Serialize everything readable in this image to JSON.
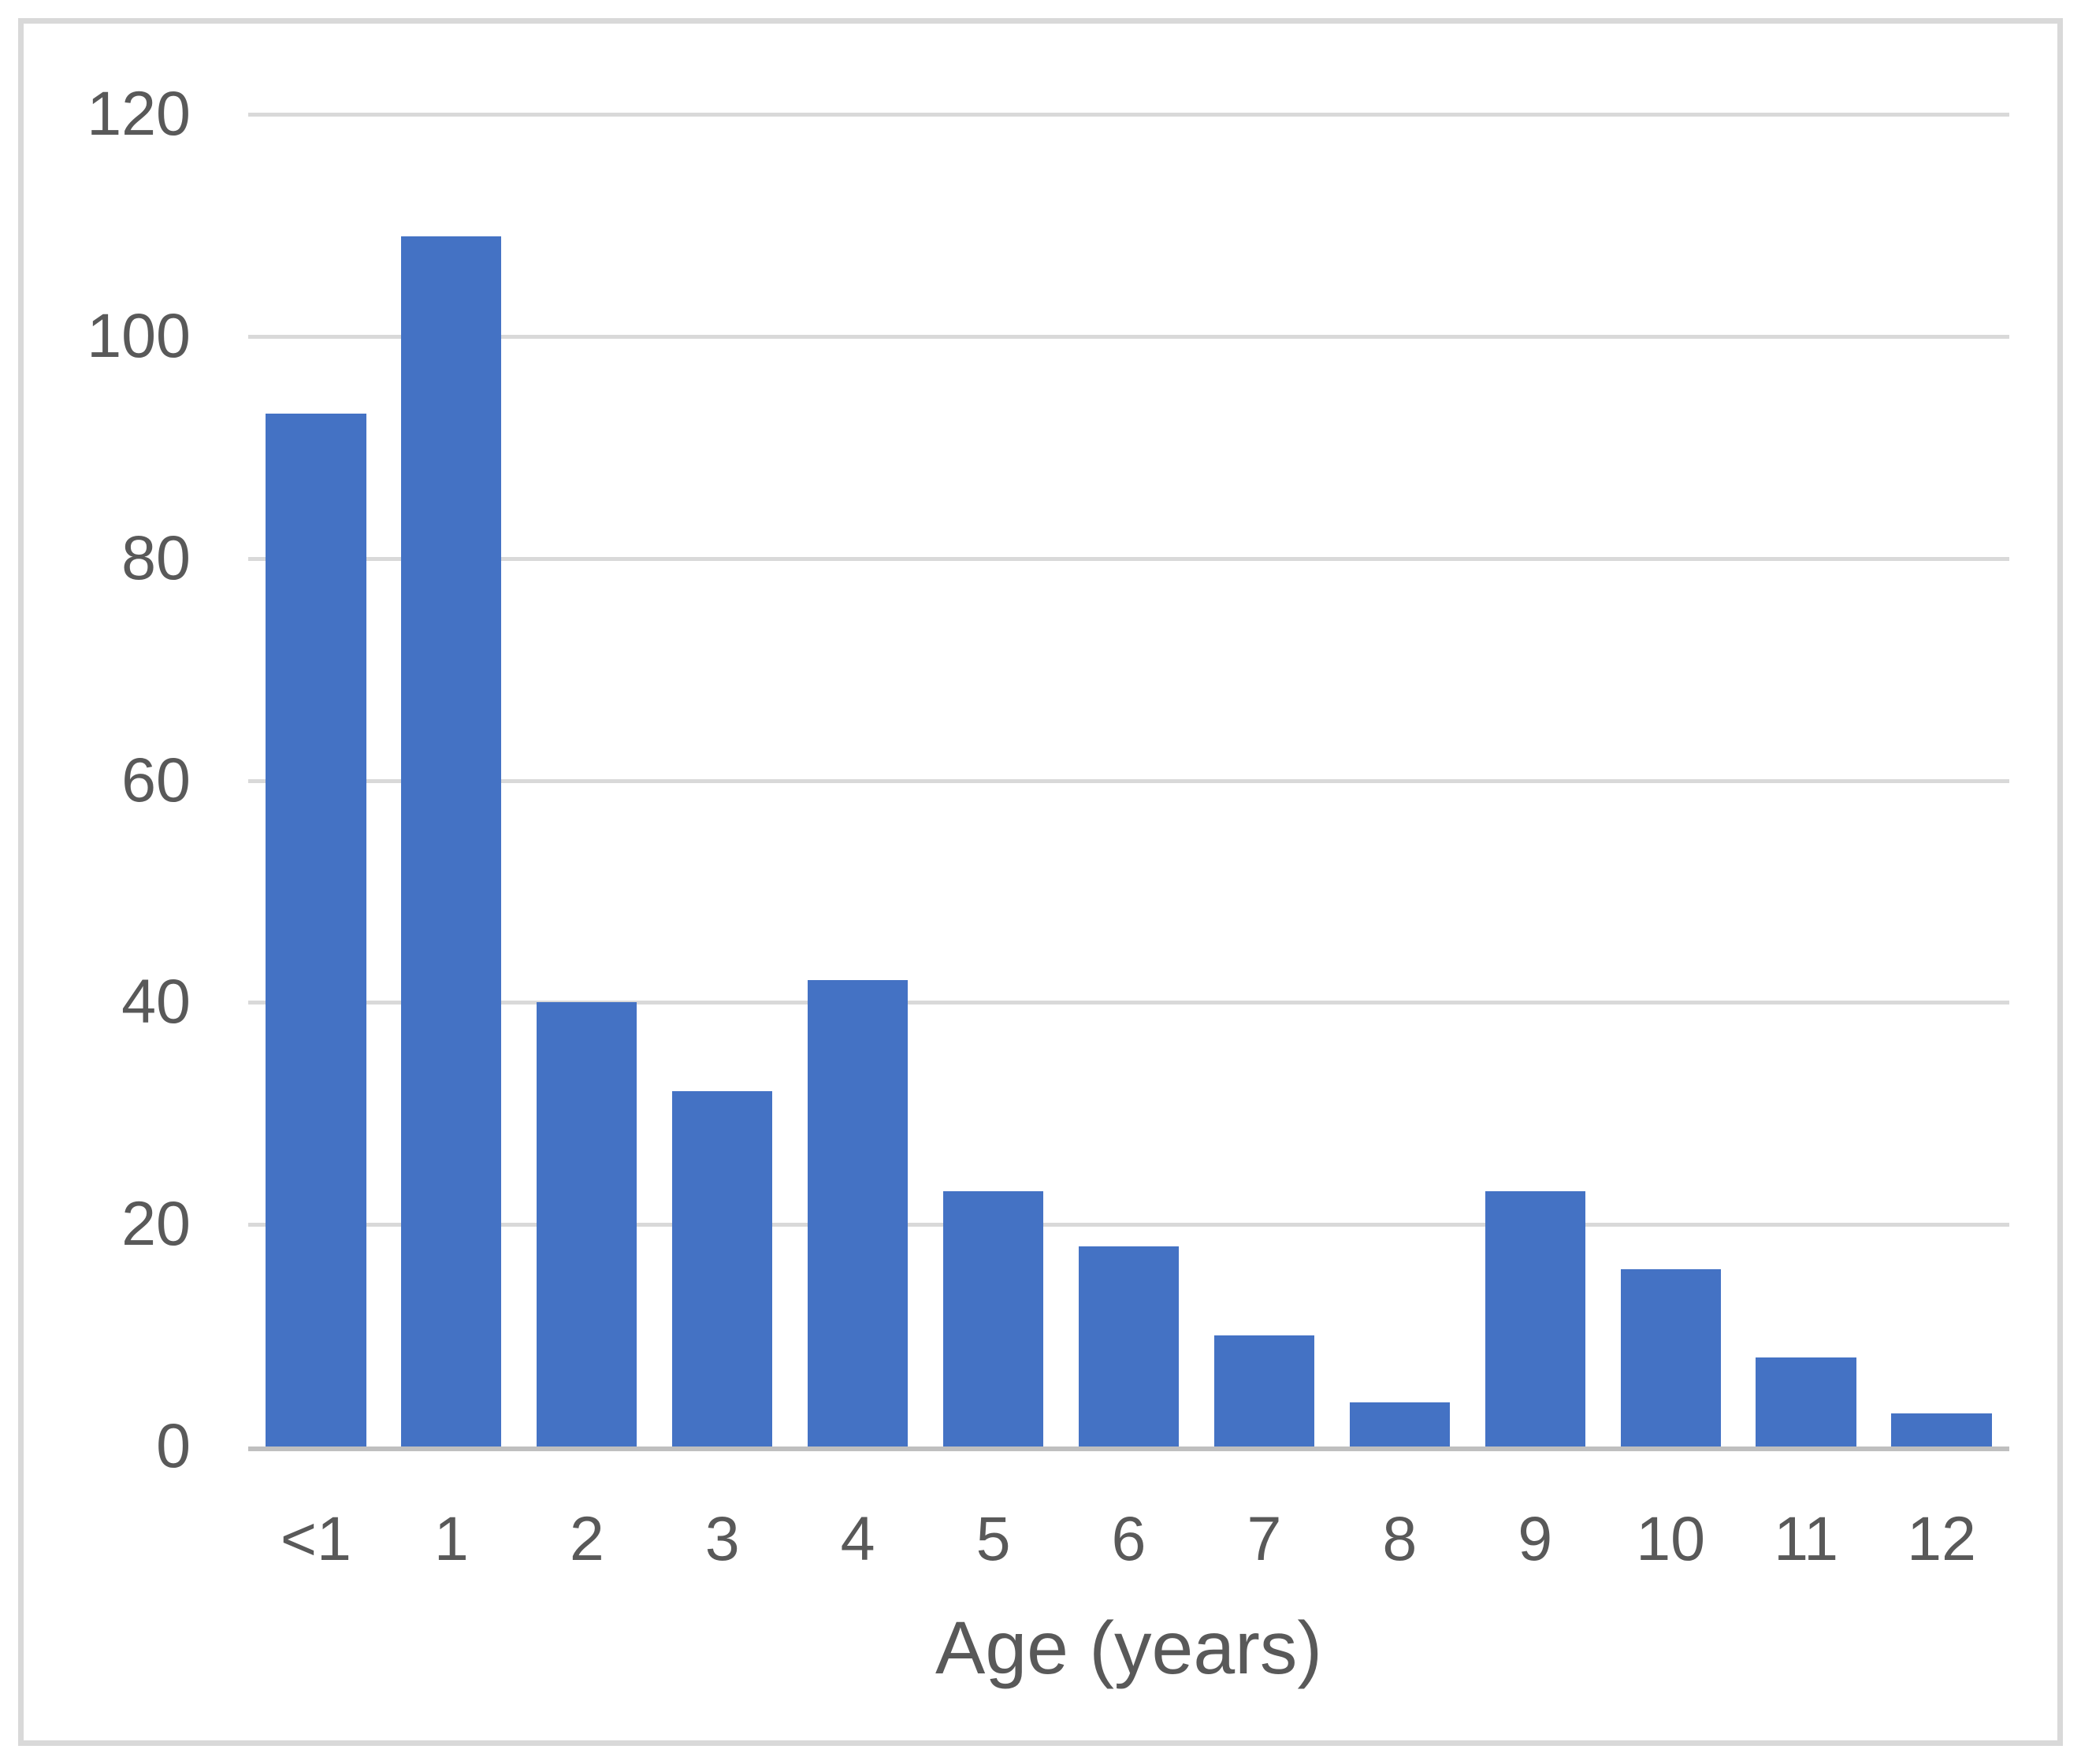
{
  "chart_data": {
    "type": "bar",
    "categories": [
      "<1",
      "1",
      "2",
      "3",
      "4",
      "5",
      "6",
      "7",
      "8",
      "9",
      "10",
      "11",
      "12"
    ],
    "values": [
      93,
      109,
      40,
      32,
      42,
      23,
      18,
      10,
      4,
      23,
      16,
      8,
      3
    ],
    "title": "",
    "xlabel": "Age (years)",
    "ylabel": "",
    "ylim": [
      0,
      120
    ],
    "ytick_step": 20,
    "ytick_values": [
      0,
      20,
      40,
      60,
      80,
      100,
      120
    ],
    "ytick_labels": [
      "0",
      "20",
      "40",
      "60",
      "80",
      "100",
      "120"
    ],
    "grid": "horizontal",
    "legend": "none",
    "bar_color": "#4472c4",
    "gridline_color": "#d9d9d9",
    "axis_line_color": "#bfbfbf",
    "tick_label_color": "#595959",
    "frame_border_color": "#d9d9d9",
    "background_color": "#ffffff"
  }
}
